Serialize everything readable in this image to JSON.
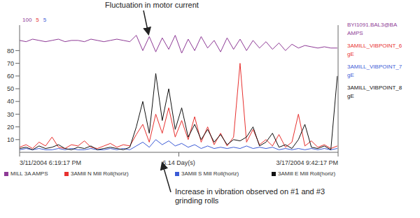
{
  "chart_data": {
    "type": "line",
    "annotations": [
      "Fluctuation in motor current",
      "Increase in vibration observed on #1 and #3 grinding rolls"
    ],
    "x": [
      0,
      0.125,
      0.25,
      0.375,
      0.5,
      0.625,
      0.75,
      0.875,
      1,
      1.125,
      1.25,
      1.375,
      1.5,
      1.625,
      1.75,
      1.875,
      2,
      2.125,
      2.25,
      2.375,
      2.5,
      2.625,
      2.75,
      2.875,
      3,
      3.125,
      3.25,
      3.375,
      3.5,
      3.625,
      3.75,
      3.875,
      4,
      4.125,
      4.25,
      4.375,
      4.5,
      4.625,
      4.75,
      4.875,
      5,
      5.125,
      5.25,
      5.375,
      5.5,
      5.625,
      5.75,
      5.875,
      6,
      6.125
    ],
    "xlim": [
      0,
      6.14
    ],
    "xticks": [
      {
        "value": 0,
        "label": "3/11/2004 6:19:17 PM"
      },
      {
        "value": 3.07,
        "label": "6.14 Day(s)"
      },
      {
        "value": 6.14,
        "label": "3/17/2004 9:42:17 PM"
      }
    ],
    "ylim": [
      0,
      100
    ],
    "yticks": [
      10,
      20,
      30,
      40,
      50,
      60,
      70,
      80
    ],
    "grid": false,
    "series": [
      {
        "name": "MILL 3A AMPS",
        "tag": "BYI1091.BAL3@BA",
        "unit": "AMPS",
        "scale": "100",
        "color": "#8e3a96",
        "values": [
          88,
          87,
          89,
          88,
          87,
          88,
          89,
          87,
          88,
          88,
          87,
          89,
          88,
          87,
          88,
          89,
          88,
          87,
          92,
          80,
          91,
          79,
          90,
          81,
          92,
          78,
          89,
          80,
          91,
          82,
          88,
          79,
          90,
          81,
          89,
          80,
          88,
          82,
          87,
          81,
          86,
          80,
          85,
          82,
          84,
          83,
          82,
          83,
          82,
          82
        ]
      },
      {
        "name": "3AMill N Mill Roll(horiz)",
        "tag": "3AMILL_VIBPOINT_6",
        "unit": "gE",
        "scale": "5",
        "color": "#e8312f",
        "values": [
          4,
          6,
          3,
          8,
          5,
          12,
          4,
          3,
          6,
          5,
          9,
          4,
          3,
          5,
          7,
          4,
          6,
          5,
          14,
          22,
          8,
          30,
          15,
          35,
          12,
          25,
          10,
          28,
          8,
          20,
          6,
          15,
          5,
          12,
          70,
          8,
          18,
          6,
          10,
          5,
          14,
          4,
          8,
          30,
          5,
          9,
          4,
          6,
          3,
          5
        ]
      },
      {
        "name": "3AMill S Mill Roll(horiz)",
        "tag": "3AMILL_VIBPOINT_7",
        "unit": "gE",
        "scale": "5",
        "color": "#3b5bd6",
        "values": [
          2,
          3,
          2,
          3,
          2,
          2,
          3,
          2,
          3,
          2,
          2,
          3,
          2,
          2,
          3,
          2,
          3,
          2,
          5,
          8,
          4,
          10,
          6,
          9,
          5,
          7,
          4,
          6,
          3,
          5,
          3,
          4,
          3,
          4,
          3,
          5,
          3,
          4,
          3,
          4,
          2,
          3,
          2,
          3,
          2,
          3,
          2,
          3,
          2,
          3
        ]
      },
      {
        "name": "3AMill E Mill Roll(horiz)",
        "tag": "3AMILL_VIBPOINT_8",
        "unit": "gE",
        "color": "#111111",
        "values": [
          3,
          4,
          2,
          5,
          3,
          4,
          6,
          3,
          2,
          4,
          3,
          5,
          2,
          3,
          4,
          3,
          2,
          4,
          20,
          40,
          15,
          62,
          25,
          50,
          18,
          35,
          12,
          22,
          10,
          18,
          8,
          14,
          6,
          10,
          9,
          12,
          20,
          5,
          8,
          15,
          4,
          6,
          3,
          10,
          22,
          4,
          3,
          5,
          2,
          60
        ]
      }
    ]
  }
}
